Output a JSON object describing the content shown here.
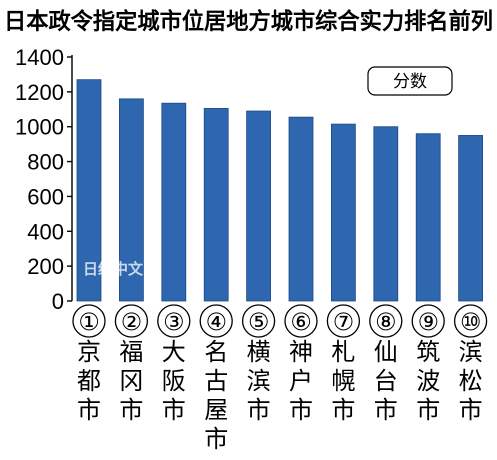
{
  "chart_data": {
    "type": "bar",
    "title": "日本政令指定城市位居地方城市综合实力排名前列",
    "legend": "分数",
    "legend_position": "top-right",
    "watermark": "日经中文网",
    "ylim": [
      0,
      1400
    ],
    "yticks": [
      0,
      200,
      400,
      600,
      800,
      1000,
      1200,
      1400
    ],
    "grid": false,
    "ranks": [
      "①",
      "②",
      "③",
      "④",
      "⑤",
      "⑥",
      "⑦",
      "⑧",
      "⑨",
      "⑩"
    ],
    "categories": [
      "京都市",
      "福冈市",
      "大阪市",
      "名古屋市",
      "横滨市",
      "神户市",
      "札幌市",
      "仙台市",
      "筑波市",
      "滨松市"
    ],
    "values": [
      1270,
      1160,
      1135,
      1105,
      1090,
      1055,
      1015,
      1000,
      960,
      950
    ],
    "colors": {
      "bar": "#2e66b0",
      "bar_edge": "#1e4a8a",
      "axis": "#000000",
      "text": "#000000"
    }
  }
}
